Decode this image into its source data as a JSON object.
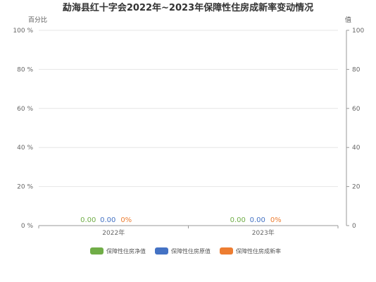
{
  "colors": {
    "net": "#70ad47",
    "orig": "#4472c4",
    "rate": "#ed7d31"
  },
  "chart_data": {
    "type": "bar",
    "title": "勐海县红十字会2022年~2023年保障性住房成新率变动情况",
    "left_axis_name": "百分比",
    "right_axis_name": "值",
    "left_ticks": [
      "0 %",
      "20 %",
      "40 %",
      "60 %",
      "80 %",
      "100 %"
    ],
    "right_ticks": [
      "0",
      "20",
      "40",
      "60",
      "80",
      "100"
    ],
    "ylim": [
      0,
      100
    ],
    "grid": true,
    "legend_position": "bottom",
    "categories": [
      "2022年",
      "2023年"
    ],
    "series": [
      {
        "name": "保障性住房净值",
        "values": [
          0,
          0
        ],
        "labels": [
          "0.00",
          "0.00"
        ],
        "color": "#70ad47",
        "axis": "right"
      },
      {
        "name": "保障性住房原值",
        "values": [
          0,
          0
        ],
        "labels": [
          "0.00",
          "0.00"
        ],
        "color": "#4472c4",
        "axis": "right"
      },
      {
        "name": "保障性住房成新率",
        "values": [
          0,
          0
        ],
        "labels": [
          "0%",
          "0%"
        ],
        "color": "#ed7d31",
        "axis": "left"
      }
    ]
  }
}
